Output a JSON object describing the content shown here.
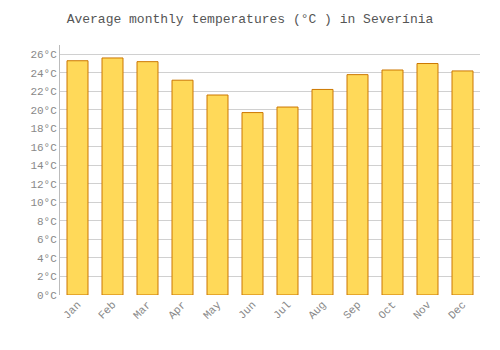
{
  "chart_data": {
    "type": "bar",
    "title": "Average monthly temperatures (°C ) in Severínia",
    "categories": [
      "Jan",
      "Feb",
      "Mar",
      "Apr",
      "May",
      "Jun",
      "Jul",
      "Aug",
      "Sep",
      "Oct",
      "Nov",
      "Dec"
    ],
    "values": [
      25.3,
      25.6,
      25.2,
      23.2,
      21.6,
      19.7,
      20.3,
      22.2,
      23.8,
      24.3,
      25.0,
      24.2
    ],
    "color": "#FFD959",
    "ylim": [
      0,
      27
    ],
    "yticks": [
      {
        "value": 0,
        "label": "0°C"
      },
      {
        "value": 2,
        "label": "2°C"
      },
      {
        "value": 4,
        "label": "4°C"
      },
      {
        "value": 6,
        "label": "6°C"
      },
      {
        "value": 8,
        "label": "8°C"
      },
      {
        "value": 10,
        "label": "10°C"
      },
      {
        "value": 12,
        "label": "12°C"
      },
      {
        "value": 14,
        "label": "14°C"
      },
      {
        "value": 16,
        "label": "16°C"
      },
      {
        "value": 18,
        "label": "18°C"
      },
      {
        "value": 20,
        "label": "20°C"
      },
      {
        "value": 22,
        "label": "22°C"
      },
      {
        "value": 24,
        "label": "24°C"
      },
      {
        "value": 26,
        "label": "26°C"
      }
    ],
    "grid": true
  }
}
